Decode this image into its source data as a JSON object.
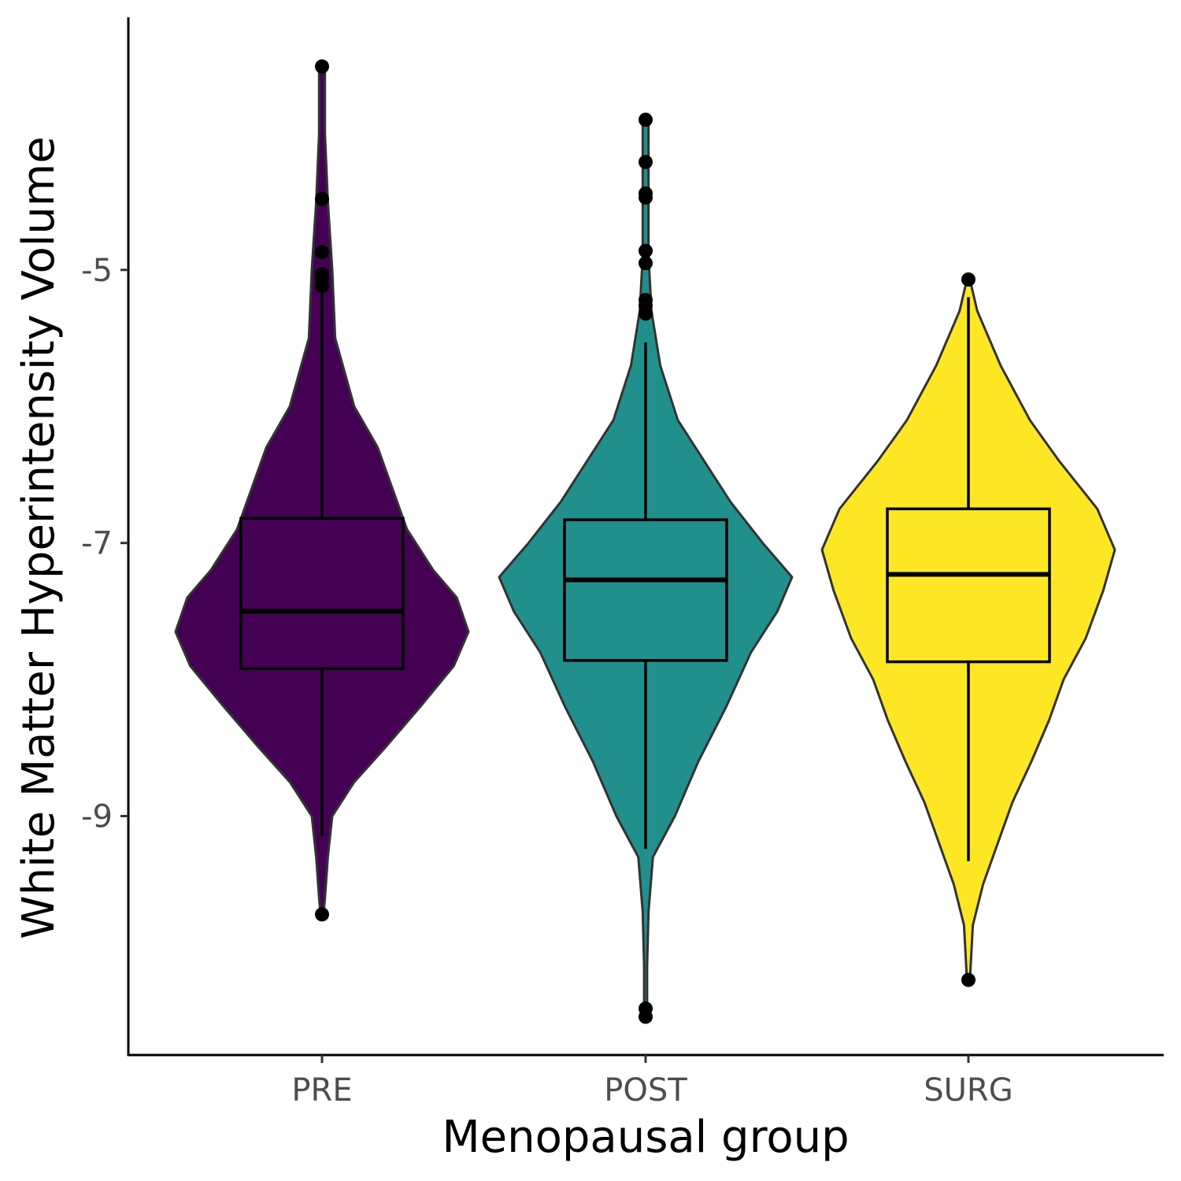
{
  "chart_data": {
    "type": "violin",
    "xlabel": "Menopausal group",
    "ylabel": "White Matter Hyperintensity Volume",
    "categories": [
      "PRE",
      "POST",
      "SURG"
    ],
    "yticks": [
      -5,
      -7,
      -9
    ],
    "ylim": [
      -10.75,
      -3.15
    ],
    "grid": false,
    "legend": "none",
    "groups": [
      {
        "name": "PRE",
        "color": "#440154",
        "box": {
          "whisker_low": -9.15,
          "q1": -7.92,
          "median": -7.5,
          "q3": -6.82,
          "whisker_high": -5.17
        },
        "outliers": [
          -3.51,
          -4.48,
          -4.87,
          -5.03,
          -5.06,
          -5.12,
          -9.72
        ],
        "density": [
          [
            -3.51,
            0.02
          ],
          [
            -4.0,
            0.02
          ],
          [
            -4.5,
            0.04
          ],
          [
            -5.0,
            0.07
          ],
          [
            -5.5,
            0.09
          ],
          [
            -6.0,
            0.22
          ],
          [
            -6.3,
            0.38
          ],
          [
            -6.6,
            0.48
          ],
          [
            -6.9,
            0.58
          ],
          [
            -7.2,
            0.76
          ],
          [
            -7.4,
            0.92
          ],
          [
            -7.65,
            1.0
          ],
          [
            -7.9,
            0.9
          ],
          [
            -8.2,
            0.67
          ],
          [
            -8.5,
            0.43
          ],
          [
            -8.75,
            0.22
          ],
          [
            -9.0,
            0.07
          ],
          [
            -9.3,
            0.04
          ],
          [
            -9.6,
            0.02
          ],
          [
            -9.72,
            0.01
          ]
        ]
      },
      {
        "name": "POST",
        "color": "#21908C",
        "box": {
          "whisker_low": -9.24,
          "q1": -7.86,
          "median": -7.27,
          "q3": -6.83,
          "whisker_high": -5.53
        },
        "outliers": [
          -3.9,
          -4.21,
          -4.44,
          -4.47,
          -4.86,
          -4.95,
          -5.22,
          -5.26,
          -5.32,
          -10.41,
          -10.47
        ],
        "density": [
          [
            -3.9,
            0.02
          ],
          [
            -4.4,
            0.02
          ],
          [
            -4.9,
            0.02
          ],
          [
            -5.3,
            0.04
          ],
          [
            -5.7,
            0.1
          ],
          [
            -6.1,
            0.22
          ],
          [
            -6.4,
            0.4
          ],
          [
            -6.7,
            0.58
          ],
          [
            -7.0,
            0.8
          ],
          [
            -7.25,
            1.0
          ],
          [
            -7.5,
            0.9
          ],
          [
            -7.8,
            0.72
          ],
          [
            -8.2,
            0.55
          ],
          [
            -8.6,
            0.36
          ],
          [
            -9.0,
            0.2
          ],
          [
            -9.3,
            0.05
          ],
          [
            -9.7,
            0.02
          ],
          [
            -10.1,
            0.01
          ],
          [
            -10.47,
            0.01
          ]
        ]
      },
      {
        "name": "SURG",
        "color": "#FDE725",
        "box": {
          "whisker_low": -9.33,
          "q1": -7.87,
          "median": -7.23,
          "q3": -6.75,
          "whisker_high": -5.2
        },
        "outliers": [
          -5.07,
          -10.2
        ],
        "density": [
          [
            -5.07,
            0.01
          ],
          [
            -5.3,
            0.06
          ],
          [
            -5.7,
            0.22
          ],
          [
            -6.1,
            0.42
          ],
          [
            -6.4,
            0.62
          ],
          [
            -6.75,
            0.88
          ],
          [
            -7.05,
            1.0
          ],
          [
            -7.35,
            0.92
          ],
          [
            -7.7,
            0.8
          ],
          [
            -8.0,
            0.65
          ],
          [
            -8.3,
            0.55
          ],
          [
            -8.6,
            0.43
          ],
          [
            -8.9,
            0.3
          ],
          [
            -9.2,
            0.2
          ],
          [
            -9.5,
            0.1
          ],
          [
            -9.8,
            0.03
          ],
          [
            -10.2,
            0.01
          ]
        ]
      }
    ]
  }
}
